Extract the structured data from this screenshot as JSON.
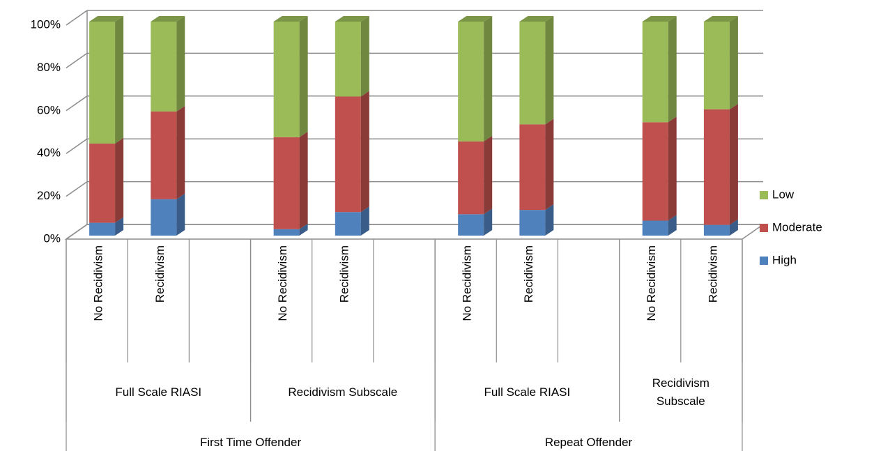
{
  "chart_data": {
    "type": "stacked_bar_3d",
    "categories": [
      "No Recidivism",
      "Recidivism",
      null,
      "No Recidivism",
      "Recidivism",
      null,
      "No Recidivism",
      "Recidivism",
      null,
      "No Recidivism",
      "Recidivism"
    ],
    "group_levels": [
      [
        "Full Scale RIASI",
        "Full Scale RIASI",
        "Full Scale RIASI",
        "Recidivism Subscale",
        "Recidivism Subscale",
        "Recidivism Subscale",
        "Full Scale RIASI",
        "Full Scale RIASI",
        "Full Scale RIASI",
        "Recidivism Subscale",
        "Recidivism Subscale"
      ],
      [
        "First Time Offender",
        "First Time Offender",
        "First Time Offender",
        "First Time Offender",
        "First Time Offender",
        "First Time Offender",
        "Repeat Offender",
        "Repeat Offender",
        "Repeat Offender",
        "Repeat Offender",
        "Repeat Offender"
      ]
    ],
    "series": [
      {
        "name": "High",
        "color": "#4f81bd",
        "values": [
          6,
          17,
          null,
          3,
          11,
          null,
          10,
          12,
          null,
          7,
          5
        ]
      },
      {
        "name": "Moderate",
        "color": "#c0504d",
        "values": [
          37,
          41,
          null,
          43,
          54,
          null,
          34,
          40,
          null,
          46,
          54
        ]
      },
      {
        "name": "Low",
        "color": "#9bbb59",
        "values": [
          57,
          42,
          null,
          54,
          35,
          null,
          56,
          48,
          null,
          47,
          41
        ]
      }
    ],
    "ylim": [
      0,
      100
    ],
    "yticks": [
      {
        "value": 0,
        "label": "0%"
      },
      {
        "value": 20,
        "label": "20%"
      },
      {
        "value": 40,
        "label": "40%"
      },
      {
        "value": 60,
        "label": "60%"
      },
      {
        "value": 80,
        "label": "80%"
      },
      {
        "value": 100,
        "label": "100%"
      }
    ],
    "grid": true,
    "legend": "right"
  }
}
